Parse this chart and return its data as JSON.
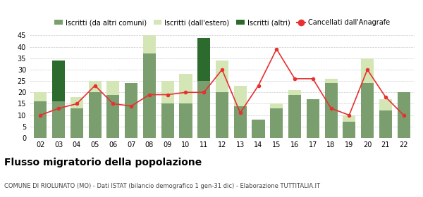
{
  "years": [
    "02",
    "03",
    "04",
    "05",
    "06",
    "07",
    "08",
    "09",
    "10",
    "11",
    "12",
    "13",
    "14",
    "15",
    "16",
    "17",
    "18",
    "19",
    "20",
    "21",
    "22"
  ],
  "iscritti_altri_comuni": [
    16,
    16,
    13,
    20,
    19,
    24,
    37,
    15,
    15,
    25,
    20,
    14,
    8,
    13,
    19,
    17,
    24,
    7,
    24,
    12,
    20
  ],
  "iscritti_estero": [
    4,
    0,
    5,
    5,
    6,
    0,
    8,
    10,
    13,
    0,
    14,
    9,
    0,
    2,
    2,
    0,
    2,
    3,
    11,
    5,
    0
  ],
  "iscritti_altri": [
    0,
    18,
    0,
    0,
    0,
    0,
    0,
    0,
    0,
    19,
    0,
    0,
    0,
    0,
    0,
    0,
    0,
    0,
    0,
    0,
    0
  ],
  "cancellati": [
    10,
    13,
    15,
    23,
    15,
    14,
    19,
    19,
    20,
    20,
    30,
    11,
    23,
    39,
    26,
    26,
    13,
    10,
    30,
    18,
    10
  ],
  "color_altri_comuni": "#7a9e6e",
  "color_estero": "#d4e6b5",
  "color_altri": "#2d6a2d",
  "color_cancellati": "#e83030",
  "title": "Flusso migratorio della popolazione",
  "subtitle": "COMUNE DI RIOLUNATO (MO) - Dati ISTAT (bilancio demografico 1 gen-31 dic) - Elaborazione TUTTITALIA.IT",
  "ylim": [
    0,
    45
  ],
  "yticks": [
    0,
    5,
    10,
    15,
    20,
    25,
    30,
    35,
    40,
    45
  ],
  "legend_labels": [
    "Iscritti (da altri comuni)",
    "Iscritti (dall'estero)",
    "Iscritti (altri)",
    "Cancellati dall'Anagrafe"
  ]
}
